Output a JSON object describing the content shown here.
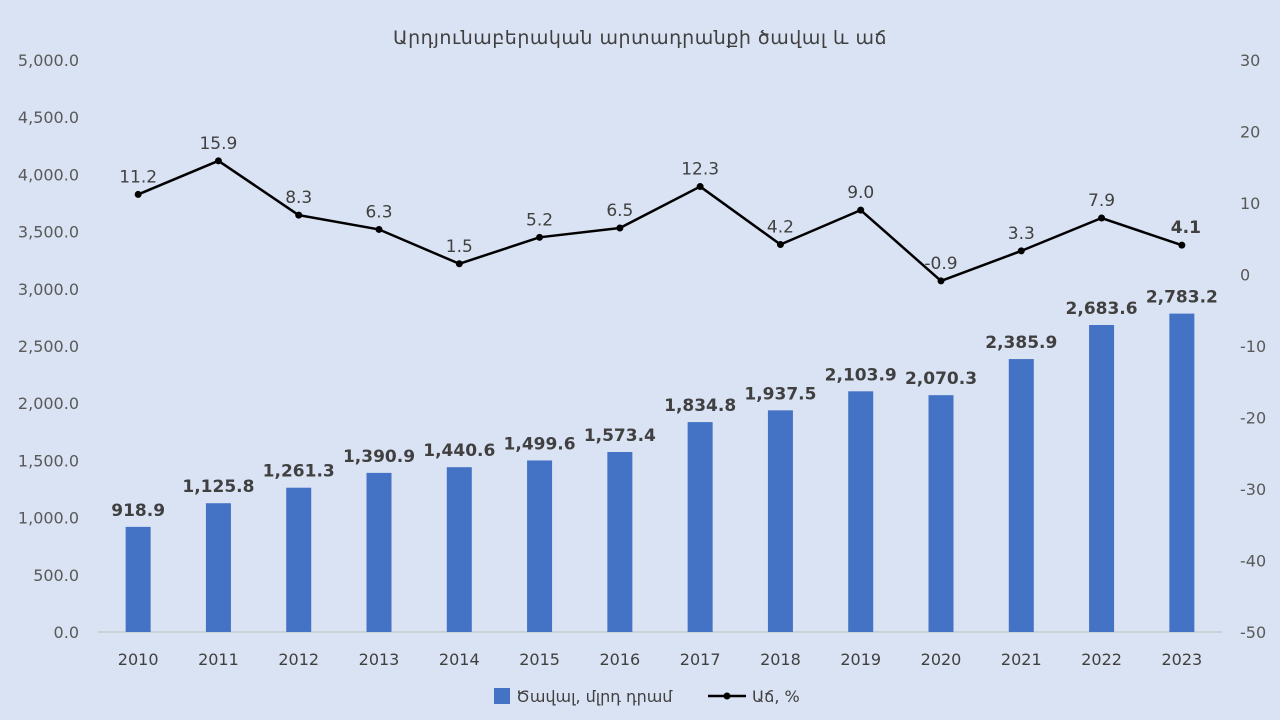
{
  "chart_data": {
    "type": "bar",
    "title": "Արդյունաբերական արտադրանքի ծավալ և աճ",
    "categories": [
      "2010",
      "2011",
      "2012",
      "2013",
      "2014",
      "2015",
      "2016",
      "2017",
      "2018",
      "2019",
      "2020",
      "2021",
      "2022",
      "2023"
    ],
    "series": [
      {
        "name": "Ծավալ, մլրդ դրամ",
        "type": "bar",
        "axis": "left",
        "color": "#4472c4",
        "values": [
          918.9,
          1125.8,
          1261.3,
          1390.9,
          1440.6,
          1499.6,
          1573.4,
          1834.8,
          1937.5,
          2103.9,
          2070.3,
          2385.9,
          2683.6,
          2783.2
        ],
        "labels": [
          "918.9",
          "1,125.8",
          "1,261.3",
          "1,390.9",
          "1,440.6",
          "1,499.6",
          "1,573.4",
          "1,834.8",
          "1,937.5",
          "2,103.9",
          "2,070.3",
          "2,385.9",
          "2,683.6",
          "2,783.2"
        ]
      },
      {
        "name": "Աճ, %",
        "type": "line",
        "axis": "right",
        "color": "#000000",
        "values": [
          11.2,
          15.9,
          8.3,
          6.3,
          1.5,
          5.2,
          6.5,
          12.3,
          4.2,
          9.0,
          -0.9,
          3.3,
          7.9,
          4.1
        ],
        "labels": [
          "11.2",
          "15.9",
          "8.3",
          "6.3",
          "1.5",
          "5.2",
          "6.5",
          "12.3",
          "4.2",
          "9.0",
          "-0.9",
          "3.3",
          "7.9",
          "4.1"
        ]
      }
    ],
    "y_left": {
      "range": [
        0,
        5000
      ],
      "ticks": [
        "0.0",
        "500.0",
        "1,000.0",
        "1,500.0",
        "2,000.0",
        "2,500.0",
        "3,000.0",
        "3,500.0",
        "4,000.0",
        "4,500.0",
        "5,000.0"
      ]
    },
    "y_right": {
      "range": [
        -50,
        30
      ],
      "ticks": [
        "-50",
        "-40",
        "-30",
        "-20",
        "-10",
        "0",
        "10",
        "20",
        "30"
      ]
    },
    "highlight_color": "#ff0000",
    "highlight_category": "2023",
    "grid": false,
    "legend_position": "bottom"
  }
}
